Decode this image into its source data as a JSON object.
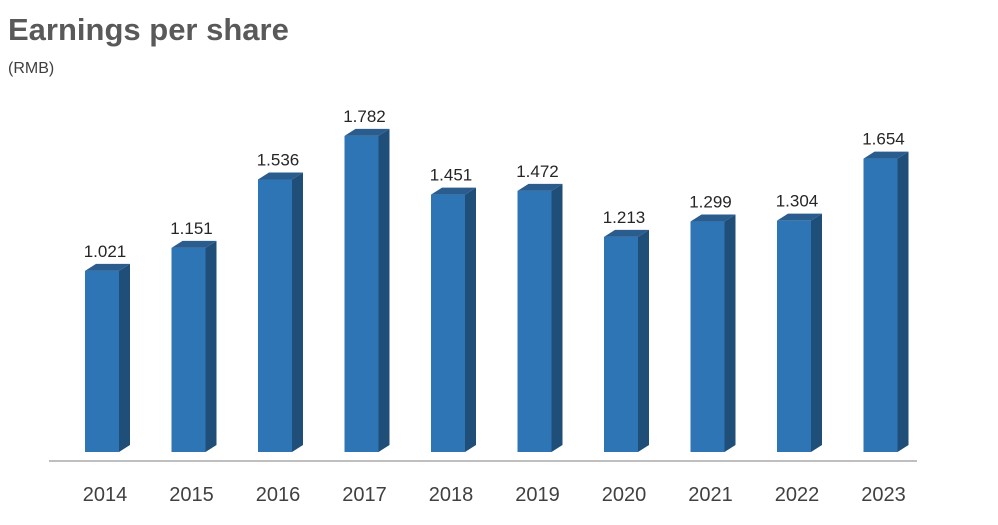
{
  "chart_data": {
    "type": "bar",
    "title": "Earnings per share",
    "subtitle": "(RMB)",
    "categories": [
      "2014",
      "2015",
      "2016",
      "2017",
      "2018",
      "2019",
      "2020",
      "2021",
      "2022",
      "2023"
    ],
    "values": [
      1.021,
      1.151,
      1.536,
      1.782,
      1.451,
      1.472,
      1.213,
      1.299,
      1.304,
      1.654
    ],
    "data_labels": [
      "1.021",
      "1.151",
      "1.536",
      "1.782",
      "1.451",
      "1.472",
      "1.213",
      "1.299",
      "1.304",
      "1.654"
    ],
    "xlabel": "",
    "ylabel": "",
    "ylim": [
      0,
      1.8
    ],
    "grid": false,
    "legend": "none",
    "colors": {
      "bar_front": "#2E75B6",
      "bar_side": "#1F4E79",
      "bar_top": "#2A5D8E",
      "axis": "#BFBFBF"
    }
  }
}
